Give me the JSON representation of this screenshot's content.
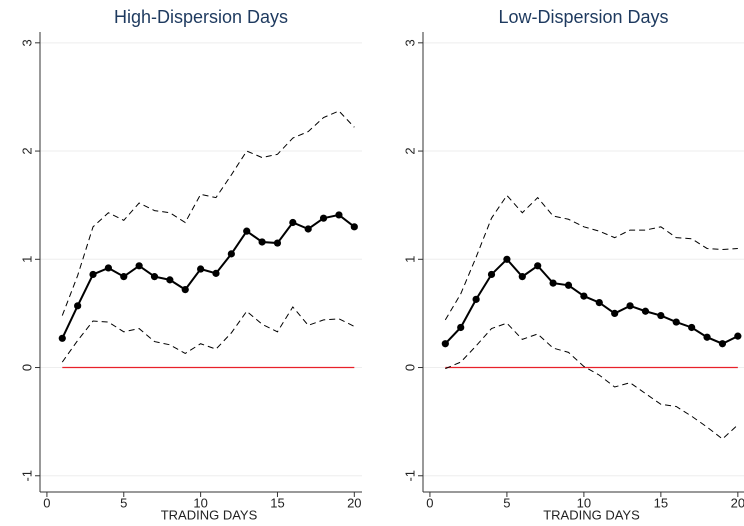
{
  "chart_data": [
    {
      "type": "line",
      "title": "High-Dispersion Days",
      "xlabel": "TRADING DAYS",
      "x": [
        1,
        2,
        3,
        4,
        5,
        6,
        7,
        8,
        9,
        10,
        11,
        12,
        13,
        14,
        15,
        16,
        17,
        18,
        19,
        20
      ],
      "series": [
        {
          "color": "#000000",
          "style": "solid",
          "markers": true,
          "values": [
            0.27,
            0.57,
            0.86,
            0.92,
            0.84,
            0.94,
            0.84,
            0.81,
            0.72,
            0.91,
            0.87,
            1.05,
            1.26,
            1.16,
            1.15,
            1.34,
            1.28,
            1.38,
            1.41,
            1.3
          ]
        },
        {
          "color": "#000000",
          "style": "dashed",
          "markers": false,
          "values": [
            0.48,
            0.85,
            1.3,
            1.43,
            1.36,
            1.52,
            1.45,
            1.43,
            1.34,
            1.6,
            1.57,
            1.78,
            2.0,
            1.94,
            1.97,
            2.12,
            2.18,
            2.31,
            2.37,
            2.22
          ]
        },
        {
          "color": "#000000",
          "style": "dashed",
          "markers": false,
          "values": [
            0.05,
            0.25,
            0.43,
            0.42,
            0.33,
            0.36,
            0.24,
            0.21,
            0.13,
            0.22,
            0.17,
            0.32,
            0.52,
            0.4,
            0.33,
            0.56,
            0.39,
            0.44,
            0.45,
            0.38
          ]
        }
      ],
      "hline": {
        "value": 0,
        "color": "#e8212a"
      },
      "xlim": [
        -0.45,
        20.5
      ],
      "xticks": [
        0,
        5,
        10,
        15,
        20
      ],
      "ylim": [
        -1.15,
        3.1
      ],
      "yticks": [
        -1,
        0,
        1,
        2,
        3
      ],
      "grid": true
    },
    {
      "type": "line",
      "title": "Low-Dispersion Days",
      "xlabel": "TRADING DAYS",
      "x": [
        1,
        2,
        3,
        4,
        5,
        6,
        7,
        8,
        9,
        10,
        11,
        12,
        13,
        14,
        15,
        16,
        17,
        18,
        19,
        20
      ],
      "series": [
        {
          "color": "#000000",
          "style": "solid",
          "markers": true,
          "values": [
            0.22,
            0.37,
            0.63,
            0.86,
            1.0,
            0.84,
            0.94,
            0.78,
            0.76,
            0.66,
            0.6,
            0.5,
            0.57,
            0.52,
            0.48,
            0.42,
            0.37,
            0.28,
            0.22,
            0.29
          ]
        },
        {
          "color": "#000000",
          "style": "dashed",
          "markers": false,
          "values": [
            0.44,
            0.68,
            1.02,
            1.38,
            1.59,
            1.43,
            1.57,
            1.4,
            1.37,
            1.3,
            1.26,
            1.2,
            1.27,
            1.27,
            1.3,
            1.2,
            1.19,
            1.1,
            1.09,
            1.1
          ]
        },
        {
          "color": "#000000",
          "style": "dashed",
          "markers": false,
          "values": [
            -0.01,
            0.05,
            0.2,
            0.36,
            0.41,
            0.26,
            0.31,
            0.18,
            0.14,
            0.01,
            -0.07,
            -0.18,
            -0.14,
            -0.24,
            -0.34,
            -0.36,
            -0.45,
            -0.55,
            -0.66,
            -0.53
          ]
        }
      ],
      "hline": {
        "value": 0,
        "color": "#e8212a"
      },
      "xlim": [
        -0.45,
        20.4
      ],
      "xticks": [
        0,
        5,
        10,
        15,
        20
      ],
      "ylim": [
        -1.15,
        3.1
      ],
      "yticks": [
        -1,
        0,
        1,
        2,
        3
      ],
      "grid": true
    }
  ]
}
